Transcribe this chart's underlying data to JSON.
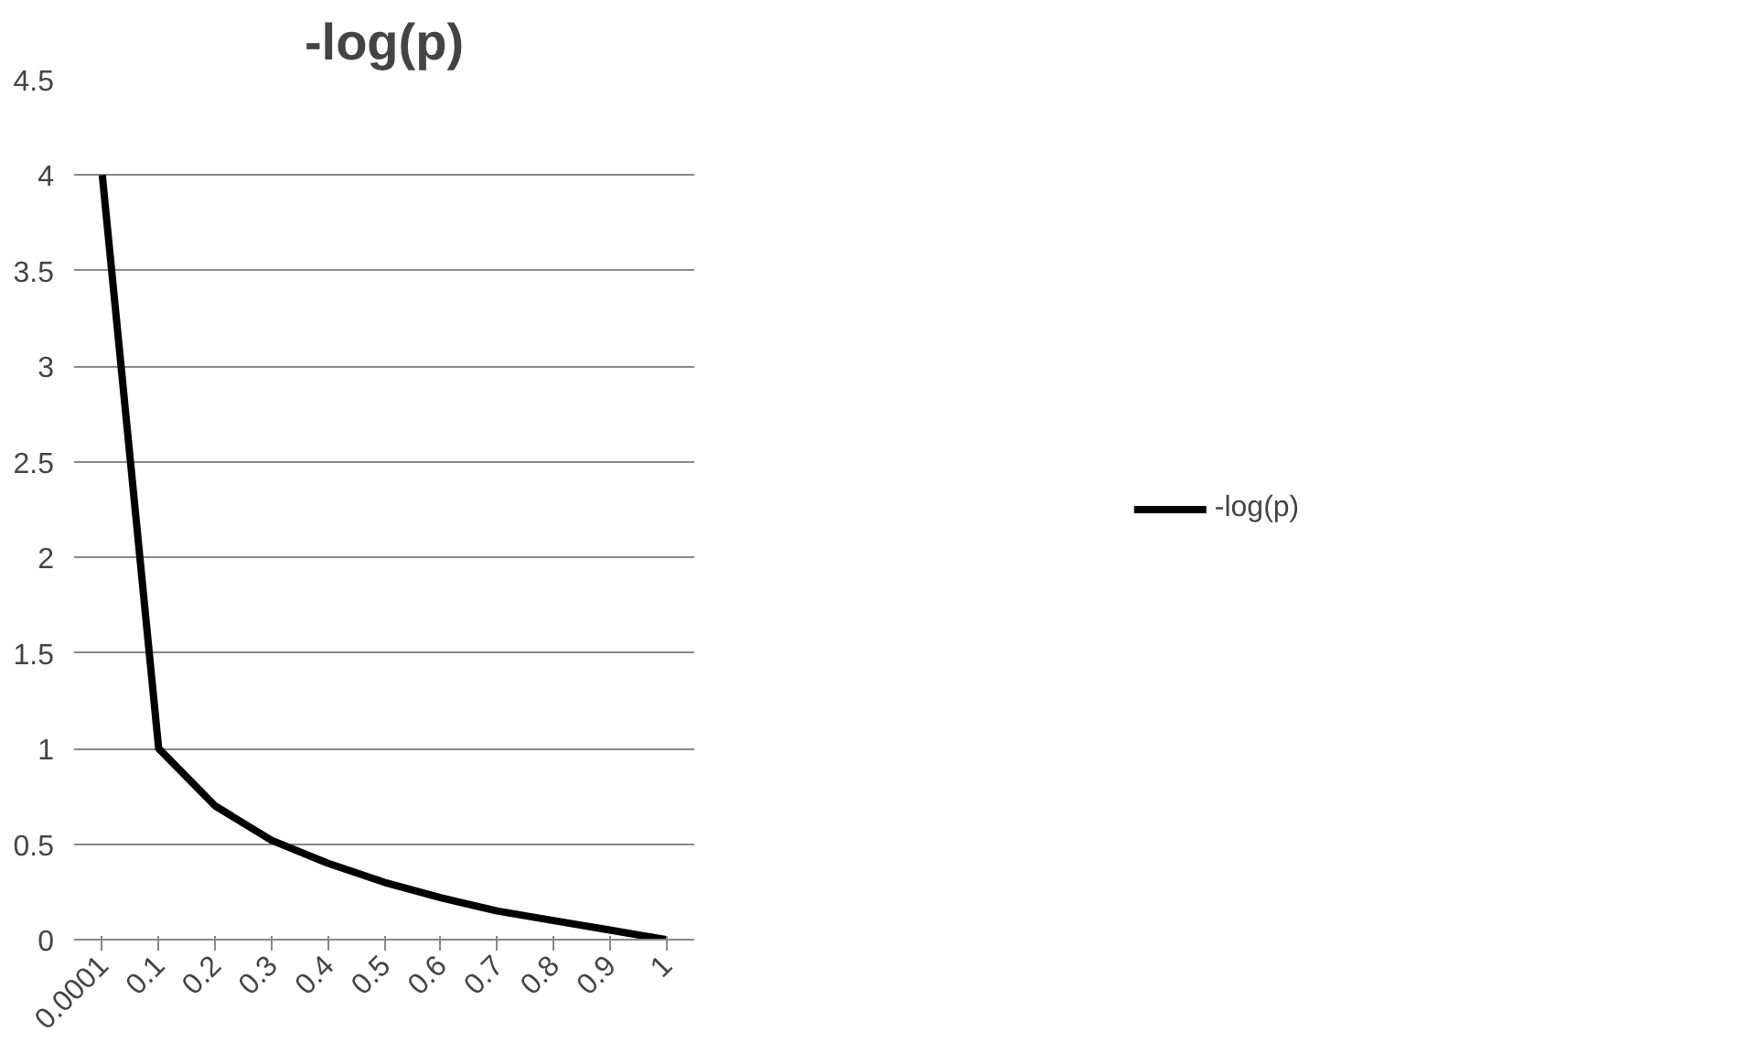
{
  "chart_data": {
    "type": "line",
    "title": "-log(p)",
    "categories": [
      "0.0001",
      "0.1",
      "0.2",
      "0.3",
      "0.4",
      "0.5",
      "0.6",
      "0.7",
      "0.8",
      "0.9",
      "1"
    ],
    "series": [
      {
        "name": "-log(p)",
        "color": "#000000",
        "values": [
          4,
          1,
          0.7,
          0.52,
          0.4,
          0.3,
          0.22,
          0.15,
          0.1,
          0.05,
          0
        ]
      }
    ],
    "ylim": [
      0,
      4.5
    ],
    "yticks": [
      0,
      0.5,
      1,
      1.5,
      2,
      2.5,
      3,
      3.5,
      4,
      4.5
    ],
    "grid": "y",
    "legend": "right",
    "marker": "none",
    "line_style": "solid"
  }
}
